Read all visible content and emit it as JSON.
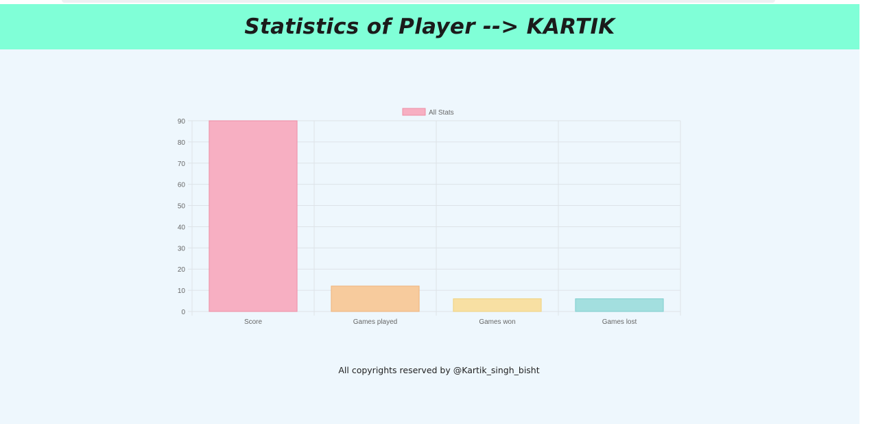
{
  "header": {
    "title": "Statistics of Player --> KARTIK"
  },
  "chart_data": {
    "type": "bar",
    "categories": [
      "Score",
      "Games played",
      "Games won",
      "Games lost"
    ],
    "series": [
      {
        "name": "All Stats",
        "values": [
          90,
          12,
          6,
          6
        ]
      }
    ],
    "bar_colors": [
      "#f7afc2",
      "#f7cb9d",
      "#f8e0a3",
      "#a3dfdf"
    ],
    "bar_borders": [
      "#ee8ea4",
      "#efb37b",
      "#f0d27e",
      "#7fcece"
    ],
    "ylim": [
      0,
      90
    ],
    "yticks": [
      0,
      10,
      20,
      30,
      40,
      50,
      60,
      70,
      80,
      90
    ],
    "grid": true,
    "legend_position": "top-center",
    "title": "",
    "xlabel": "",
    "ylabel": ""
  },
  "footer": {
    "text": "All copyrights reserved by @Kartik_singh_bisht"
  }
}
